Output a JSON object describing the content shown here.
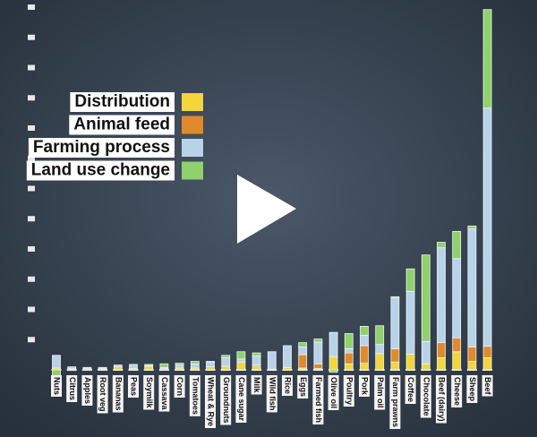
{
  "chart_data": {
    "type": "stacked-bar",
    "categories": [
      "Nuts",
      "Citrus",
      "Apples",
      "Root veg",
      "Bananas",
      "Peas",
      "Soymilk",
      "Cassava",
      "Corn",
      "Tomatoes",
      "Wheat & Rye",
      "Groundnuts",
      "Cane sugar",
      "Milk",
      "Wild fish",
      "Rice",
      "Eggs",
      "Farmed fish",
      "Olive oil",
      "Poultry",
      "Pork",
      "Palm oil",
      "Farm prawns",
      "Coffee",
      "Chocolate",
      "Beef (dairy)",
      "Cheese",
      "Sheep",
      "Beef"
    ],
    "series": [
      {
        "name": "Distribution",
        "color": "#f2d63a",
        "values": [
          0.3,
          0.2,
          0.2,
          0.2,
          0.5,
          0.2,
          0.6,
          0.2,
          0.3,
          0.3,
          0.5,
          0.6,
          1.3,
          0.6,
          0.1,
          0.4,
          0.3,
          0.2,
          2.2,
          1.0,
          1.1,
          2.7,
          1.3,
          2.6,
          1.0,
          2.0,
          3.0,
          1.4,
          2.0
        ]
      },
      {
        "name": "Animal feed",
        "color": "#e08a2c",
        "values": [
          0,
          0,
          0,
          0,
          0,
          0,
          0,
          0,
          0,
          0,
          0,
          0,
          0,
          0.2,
          0,
          0,
          2.2,
          0.8,
          0,
          1.8,
          2.9,
          0,
          2.2,
          0,
          0,
          2.5,
          2.3,
          2.4,
          1.9
        ]
      },
      {
        "name": "Farming process",
        "color": "#b8d3e8",
        "values": [
          2.1,
          0.3,
          0.2,
          0.2,
          0.3,
          0.7,
          0.1,
          0.2,
          0.5,
          0.7,
          0.8,
          1.4,
          0.5,
          1.5,
          2.9,
          3.6,
          1.3,
          3.6,
          4.0,
          0.7,
          1.7,
          1.5,
          8.4,
          10.4,
          3.7,
          15.7,
          13.1,
          19.5,
          39.4
        ]
      },
      {
        "name": "Land use change",
        "color": "#8fd16a",
        "values": [
          -2.1,
          -0.1,
          0,
          0,
          0,
          0,
          0.2,
          0.6,
          0.3,
          0.4,
          0.1,
          0.4,
          1.2,
          0.5,
          0,
          0,
          0.7,
          0.5,
          -0.4,
          2.5,
          1.5,
          3.1,
          0.2,
          3.7,
          14.3,
          0.9,
          4.5,
          0.5,
          16.3
        ]
      }
    ],
    "ylim": [
      0,
      60
    ],
    "yticks": [
      5,
      10,
      15,
      20,
      25,
      30,
      35,
      40,
      45,
      50,
      55,
      60
    ],
    "legend": "upper-left"
  }
}
